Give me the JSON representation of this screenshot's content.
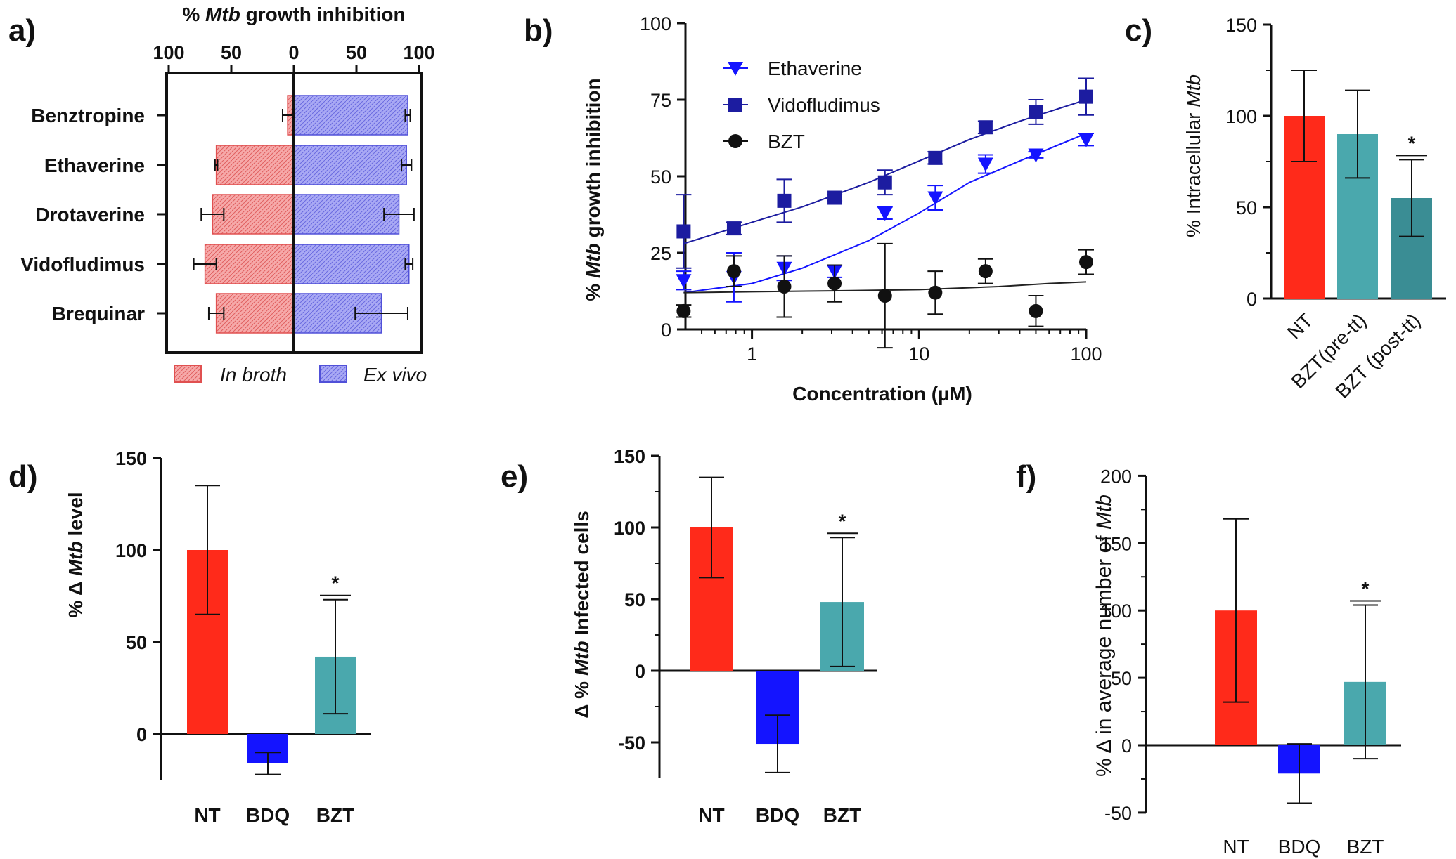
{
  "figure": {
    "panel_letters": [
      "a)",
      "b)",
      "c)",
      "d)",
      "e)",
      "f)"
    ]
  },
  "colors": {
    "red": "#ff2a1a",
    "blue": "#1414ff",
    "teal": "#4aa8ad",
    "teal_dark": "#3a8d94",
    "navy": "#1c1ca0",
    "hatch_red": "#f4a0a0",
    "hatch_blue": "#a0a0f0",
    "black": "#111111"
  },
  "chart_data": [
    {
      "panel": "a)",
      "type": "bar",
      "orientation": "horizontal-diverging",
      "title_pre": "% ",
      "title_italic": "Mtb",
      "title_post": " growth inhibition",
      "xlim_left": [
        100,
        0
      ],
      "xlim_right": [
        0,
        100
      ],
      "xticks": [
        "100",
        "50",
        "0",
        "50",
        "100"
      ],
      "categories": [
        "Benztropine",
        "Ethaverine",
        "Drotaverine",
        "Vidofludimus",
        "Brequinar"
      ],
      "series": [
        {
          "name": "In broth",
          "side": "left",
          "values": [
            5,
            62,
            65,
            71,
            62
          ],
          "errors": [
            4,
            1,
            9,
            9,
            6
          ]
        },
        {
          "name": "Ex vivo",
          "side": "right",
          "values": [
            91,
            90,
            84,
            92,
            70
          ],
          "errors": [
            2,
            4,
            12,
            3,
            21
          ]
        }
      ],
      "legend": [
        "In broth",
        "Ex vivo"
      ]
    },
    {
      "panel": "b)",
      "type": "scatter",
      "xscale": "log",
      "xlabel": "Concentration (µM)",
      "ylabel_pre": "% ",
      "ylabel_italic": "Mtb",
      "ylabel_post": " growth inhibition",
      "xlim": [
        0.4,
        100
      ],
      "ylim": [
        0,
        100
      ],
      "xticks": [
        "1",
        "10",
        "100"
      ],
      "yticks": [
        "0",
        "25",
        "50",
        "75",
        "100"
      ],
      "x": [
        0.39,
        0.78,
        1.56,
        3.12,
        6.25,
        12.5,
        25,
        50,
        100
      ],
      "series": [
        {
          "name": "Ethaverine",
          "marker": "triangle-down",
          "values": [
            16,
            17,
            20,
            19,
            38,
            43,
            54,
            57,
            62
          ],
          "errors": [
            3,
            8,
            4,
            2,
            2,
            4,
            3,
            1,
            2
          ]
        },
        {
          "name": "Vidofludimus",
          "marker": "square",
          "values": [
            32,
            33,
            42,
            43,
            48,
            56,
            66,
            71,
            76
          ],
          "errors": [
            12,
            2,
            7,
            1,
            4,
            2,
            2,
            4,
            6
          ]
        },
        {
          "name": "BZT",
          "marker": "circle",
          "values": [
            6,
            19,
            14,
            15,
            11,
            12,
            19,
            6,
            22
          ],
          "errors": [
            2,
            5,
            10,
            6,
            17,
            7,
            4,
            5,
            4
          ]
        }
      ],
      "fits": [
        {
          "name": "Ethaverine",
          "x": [
            0.39,
            1,
            2,
            5,
            10,
            20,
            40,
            100
          ],
          "y": [
            12,
            15,
            20,
            29,
            38,
            48,
            55,
            64
          ]
        },
        {
          "name": "Vidofludimus",
          "x": [
            0.39,
            1,
            2,
            5,
            10,
            20,
            40,
            100
          ],
          "y": [
            28,
            35,
            40,
            48,
            55,
            62,
            68,
            75
          ]
        },
        {
          "name": "BZT",
          "x": [
            0.39,
            1,
            3,
            10,
            30,
            60,
            100
          ],
          "y": [
            12,
            12.3,
            12.6,
            13,
            14,
            15,
            15.5
          ]
        }
      ]
    },
    {
      "panel": "c)",
      "type": "bar",
      "ylabel_pre": "% Intracellular ",
      "ylabel_italic": "Mtb",
      "ylim": [
        0,
        150
      ],
      "yticks": [
        "0",
        "50",
        "100",
        "150"
      ],
      "categories": [
        "NT",
        "BZT(pre-tt)",
        "BZT (post-tt)"
      ],
      "values": [
        100,
        90,
        55
      ],
      "errors": [
        25,
        24,
        21
      ],
      "significance": [
        "",
        "",
        "*"
      ]
    },
    {
      "panel": "d)",
      "type": "bar",
      "ylabel_pre": "% Δ ",
      "ylabel_italic": "Mtb",
      "ylabel_post": " level",
      "ylim": [
        -25,
        150
      ],
      "yticks": [
        "0",
        "50",
        "100",
        "150"
      ],
      "categories": [
        "NT",
        "BDQ",
        "BZT"
      ],
      "values": [
        100,
        -16,
        42
      ],
      "errors": [
        35,
        6,
        31
      ],
      "significance": [
        "",
        "",
        "*"
      ]
    },
    {
      "panel": "e)",
      "type": "bar",
      "ylabel_pre": "Δ % ",
      "ylabel_italic": "Mtb",
      "ylabel_post": " Infected cells",
      "ylim": [
        -75,
        150
      ],
      "yticks": [
        "-50",
        "0",
        "50",
        "100",
        "150"
      ],
      "categories": [
        "NT",
        "BDQ",
        "BZT"
      ],
      "values": [
        100,
        -51,
        48
      ],
      "errors": [
        35,
        20,
        45
      ],
      "significance": [
        "",
        "",
        "*"
      ]
    },
    {
      "panel": "f)",
      "type": "bar",
      "ylabel_pre": "% Δ in average number of ",
      "ylabel_italic": "Mtb",
      "ylim": [
        -50,
        200
      ],
      "yticks": [
        "-50",
        "0",
        "50",
        "100",
        "150",
        "200"
      ],
      "categories": [
        "NT",
        "BDQ",
        "BZT"
      ],
      "values": [
        100,
        -21,
        47
      ],
      "errors": [
        68,
        22,
        57
      ],
      "significance": [
        "",
        "",
        "*"
      ]
    }
  ]
}
